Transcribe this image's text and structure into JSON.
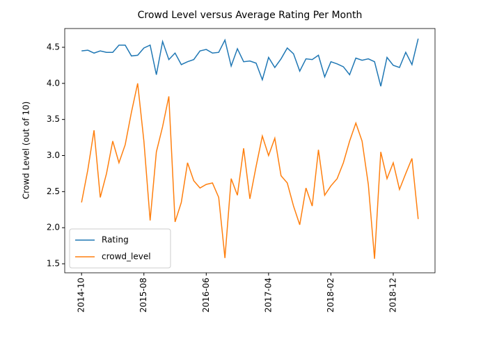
{
  "chart_data": {
    "type": "line",
    "title": "Crowd Level versus Average Rating Per Month",
    "y_label": "Crowd Level (out of 10)",
    "x": [
      "2014-10",
      "2014-11",
      "2014-12",
      "2015-01",
      "2015-02",
      "2015-03",
      "2015-04",
      "2015-05",
      "2015-06",
      "2015-07",
      "2015-08",
      "2015-09",
      "2015-10",
      "2015-11",
      "2015-12",
      "2016-01",
      "2016-02",
      "2016-03",
      "2016-04",
      "2016-05",
      "2016-06",
      "2016-07",
      "2016-08",
      "2016-09",
      "2016-10",
      "2016-11",
      "2016-12",
      "2017-01",
      "2017-02",
      "2017-03",
      "2017-04",
      "2017-05",
      "2017-06",
      "2017-07",
      "2017-08",
      "2017-09",
      "2017-10",
      "2017-11",
      "2017-12",
      "2018-01",
      "2018-02",
      "2018-03",
      "2018-04",
      "2018-05",
      "2018-06",
      "2018-07",
      "2018-08",
      "2018-09",
      "2018-10",
      "2018-11",
      "2018-12",
      "2019-01",
      "2019-02",
      "2019-03",
      "2019-04"
    ],
    "series": [
      {
        "name": "Rating",
        "color": "#1f77b4",
        "values": [
          4.45,
          4.46,
          4.42,
          4.45,
          4.43,
          4.43,
          4.53,
          4.53,
          4.38,
          4.39,
          4.49,
          4.53,
          4.12,
          4.58,
          4.33,
          4.42,
          4.26,
          4.3,
          4.33,
          4.45,
          4.47,
          4.42,
          4.43,
          4.6,
          4.24,
          4.48,
          4.3,
          4.31,
          4.28,
          4.05,
          4.36,
          4.22,
          4.34,
          4.49,
          4.41,
          4.17,
          4.34,
          4.33,
          4.39,
          4.09,
          4.3,
          4.27,
          4.23,
          4.12,
          4.35,
          4.32,
          4.34,
          4.3,
          3.96,
          4.36,
          4.25,
          4.22,
          4.43,
          4.26,
          4.62
        ]
      },
      {
        "name": "crowd_level",
        "color": "#ff7f0e",
        "values": [
          2.35,
          2.8,
          3.35,
          2.42,
          2.75,
          3.2,
          2.9,
          3.15,
          3.6,
          4.0,
          3.2,
          2.1,
          3.05,
          3.4,
          3.82,
          2.08,
          2.35,
          2.9,
          2.65,
          2.55,
          2.6,
          2.62,
          2.42,
          1.58,
          2.68,
          2.45,
          3.1,
          2.4,
          2.85,
          3.27,
          3.0,
          3.24,
          2.72,
          2.62,
          2.3,
          2.04,
          2.55,
          2.3,
          3.08,
          2.45,
          2.58,
          2.68,
          2.9,
          3.2,
          3.45,
          3.2,
          2.6,
          1.57,
          3.05,
          2.68,
          2.9,
          2.53,
          2.75,
          2.96,
          2.12
        ]
      }
    ],
    "xticks": [
      "2014-10",
      "2015-08",
      "2016-06",
      "2017-04",
      "2018-02",
      "2018-12"
    ],
    "ylim": [
      1.375,
      4.76
    ],
    "yticks": [
      1.5,
      {
        "value": 2,
        "label": "2.0"
      },
      2.5,
      {
        "value": 3,
        "label": "3.0"
      },
      3.5,
      {
        "value": 4,
        "label": "4.0"
      },
      4.5
    ],
    "legend": "lower left"
  }
}
